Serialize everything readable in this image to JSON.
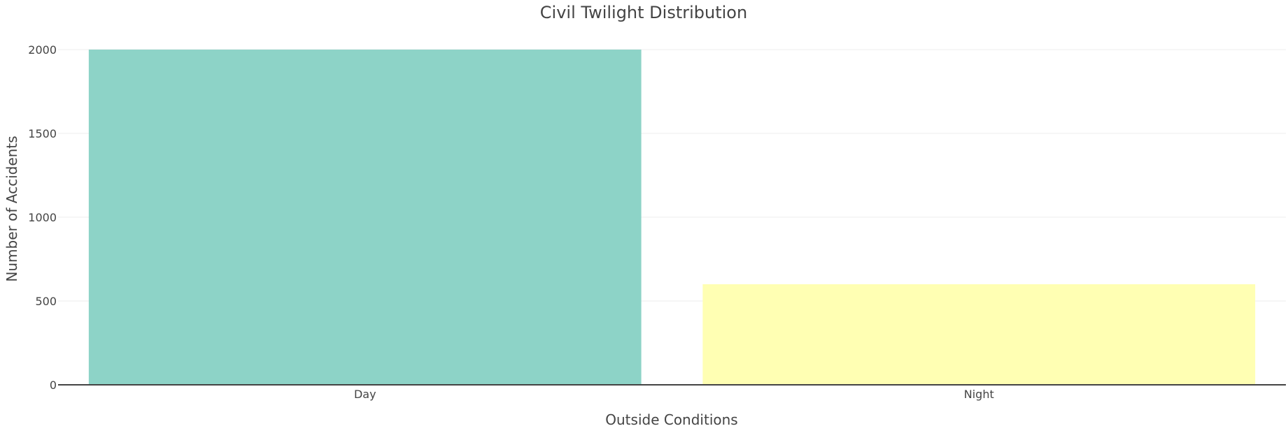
{
  "chart_data": {
    "type": "bar",
    "title": "Civil Twilight Distribution",
    "xlabel": "Outside Conditions",
    "ylabel": "Number of Accidents",
    "categories": [
      "Day",
      "Night"
    ],
    "values": [
      2000,
      600
    ],
    "colors": [
      "#8dd3c7",
      "#ffffb3"
    ],
    "ylim": [
      0,
      2000
    ],
    "yticks": [
      0,
      500,
      1000,
      1500,
      2000
    ],
    "grid": true,
    "legend": "none"
  }
}
